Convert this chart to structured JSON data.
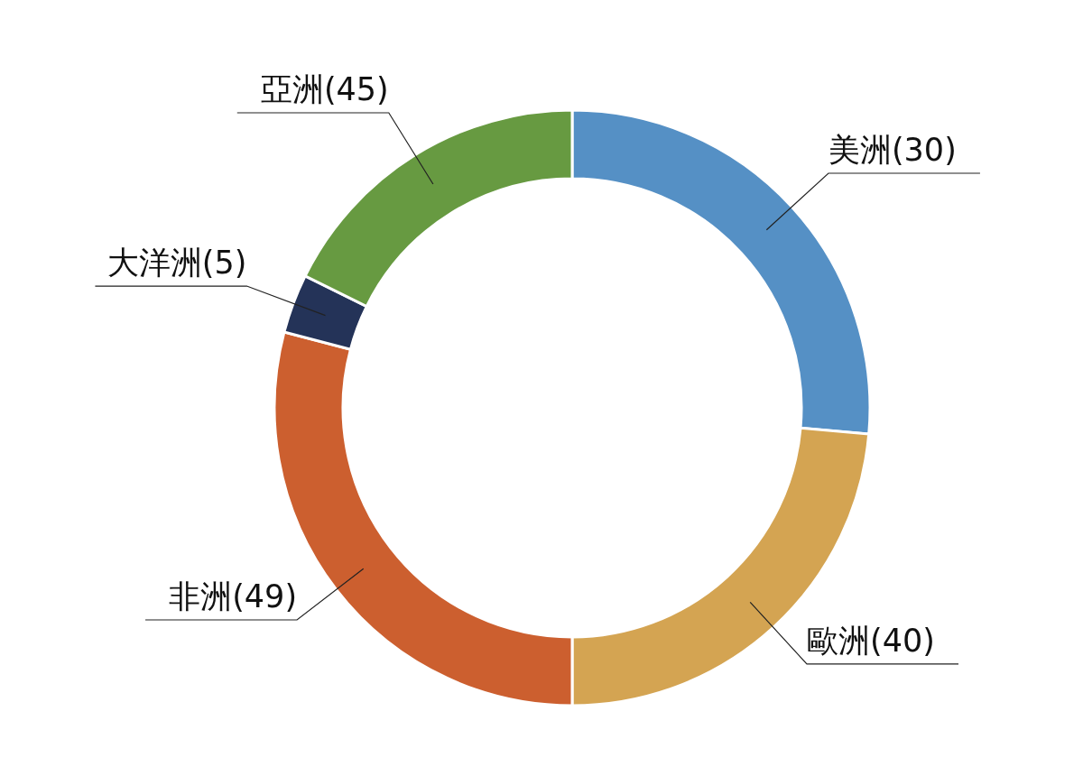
{
  "chart_data": {
    "type": "donut",
    "categories": [
      "美洲(30)",
      "歐洲(40)",
      "非洲(49)",
      "大洋洲(5)",
      "亞洲(45)"
    ],
    "values": [
      26.4,
      23.6,
      29.1,
      3.2,
      17.7
    ],
    "colors": [
      "#5590c5",
      "#d4a452",
      "#cc5f2f",
      "#243358",
      "#679a41"
    ]
  }
}
